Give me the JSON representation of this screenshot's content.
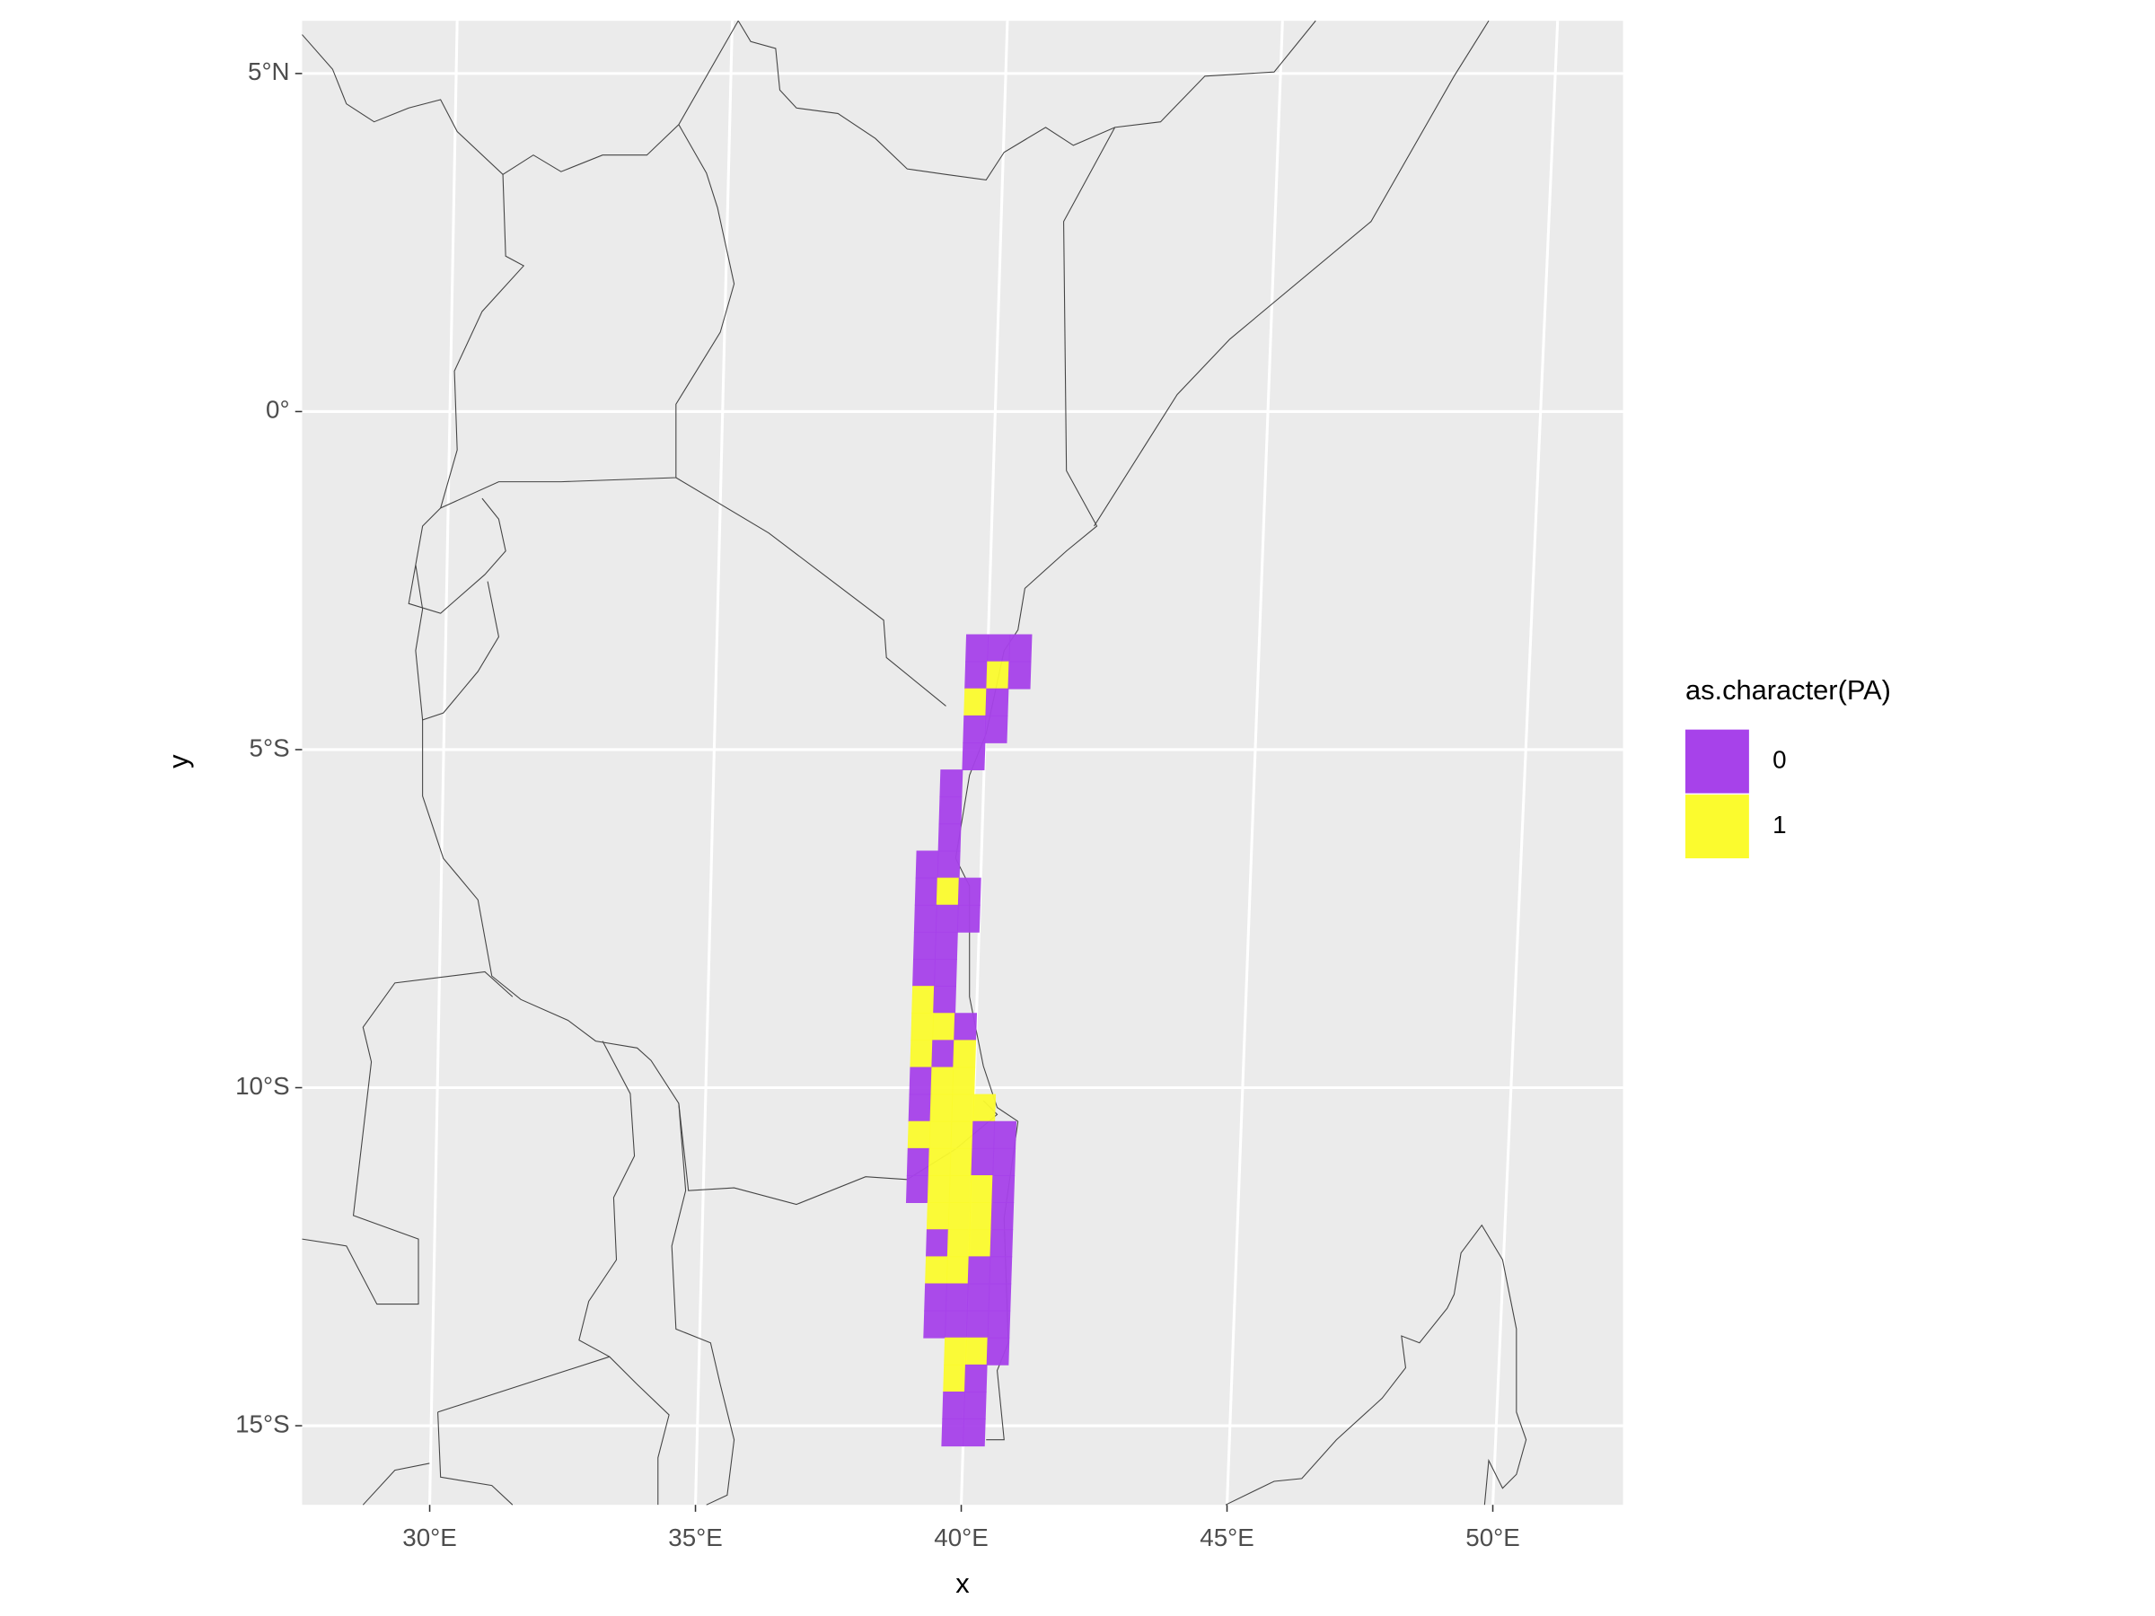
{
  "map": {
    "type": "raster",
    "x_label": "x",
    "y_label": "y",
    "legend_title": "as.character(PA)",
    "classes": [
      {
        "value": 0,
        "label": "0",
        "color": "#a742ea"
      },
      {
        "value": 1,
        "label": "1",
        "color": "#fbfb2e"
      }
    ],
    "xlim": [
      27.6,
      52.45
    ],
    "ylim": [
      -16.17,
      5.78
    ],
    "xticks": [
      {
        "value": 30,
        "label": "30°E"
      },
      {
        "value": 35,
        "label": "35°E"
      },
      {
        "value": 40,
        "label": "40°E"
      },
      {
        "value": 45,
        "label": "45°E"
      },
      {
        "value": 50,
        "label": "50°E"
      }
    ],
    "yticks": [
      {
        "value": 5,
        "label": "5°N"
      },
      {
        "value": 0,
        "label": "0°"
      },
      {
        "value": -5,
        "label": "5°S"
      },
      {
        "value": -10,
        "label": "10°S"
      },
      {
        "value": -15,
        "label": "15°S"
      }
    ],
    "raster": {
      "lon": [
        38.8,
        39.2,
        39.6,
        40.0,
        40.4,
        40.8
      ],
      "lat": [
        -3.3,
        -3.7,
        -4.1,
        -4.5,
        -4.9,
        -5.3,
        -5.7,
        -6.1,
        -6.5,
        -6.9,
        -7.3,
        -7.7,
        -8.1,
        -8.5,
        -8.9,
        -9.3,
        -9.7,
        -10.1,
        -10.5,
        -10.9,
        -11.3,
        -11.7,
        -12.1,
        -12.5,
        -12.9,
        -13.3,
        -13.7,
        -14.1,
        -14.5,
        -14.9
      ],
      "values": [
        [
          null,
          null,
          0,
          0,
          0,
          null
        ],
        [
          null,
          null,
          0,
          1,
          0,
          null
        ],
        [
          null,
          null,
          1,
          0,
          null,
          null
        ],
        [
          null,
          null,
          0,
          0,
          null,
          null
        ],
        [
          null,
          null,
          0,
          null,
          null,
          null
        ],
        [
          null,
          0,
          null,
          null,
          null,
          null
        ],
        [
          null,
          0,
          null,
          null,
          null,
          null
        ],
        [
          null,
          0,
          null,
          null,
          null,
          null
        ],
        [
          0,
          0,
          null,
          null,
          null,
          null
        ],
        [
          0,
          1,
          0,
          null,
          null,
          null
        ],
        [
          0,
          0,
          0,
          null,
          null,
          null
        ],
        [
          0,
          0,
          null,
          null,
          null,
          null
        ],
        [
          0,
          0,
          null,
          null,
          null,
          null
        ],
        [
          1,
          0,
          null,
          null,
          null,
          null
        ],
        [
          1,
          1,
          0,
          null,
          null,
          null
        ],
        [
          1,
          0,
          1,
          null,
          null,
          null
        ],
        [
          0,
          1,
          1,
          null,
          null,
          null
        ],
        [
          0,
          1,
          1,
          1,
          null,
          null
        ],
        [
          1,
          1,
          1,
          0,
          0,
          null
        ],
        [
          0,
          1,
          1,
          0,
          0,
          null
        ],
        [
          0,
          1,
          1,
          1,
          0,
          null
        ],
        [
          null,
          1,
          1,
          1,
          0,
          null
        ],
        [
          null,
          0,
          1,
          1,
          0,
          null
        ],
        [
          null,
          1,
          1,
          0,
          0,
          null
        ],
        [
          null,
          0,
          0,
          0,
          0,
          null
        ],
        [
          null,
          0,
          0,
          0,
          0,
          null
        ],
        [
          null,
          null,
          1,
          1,
          0,
          null
        ],
        [
          null,
          null,
          1,
          0,
          null,
          null
        ],
        [
          null,
          null,
          0,
          0,
          null,
          null
        ],
        [
          null,
          null,
          0,
          0,
          null,
          null
        ]
      ]
    }
  }
}
